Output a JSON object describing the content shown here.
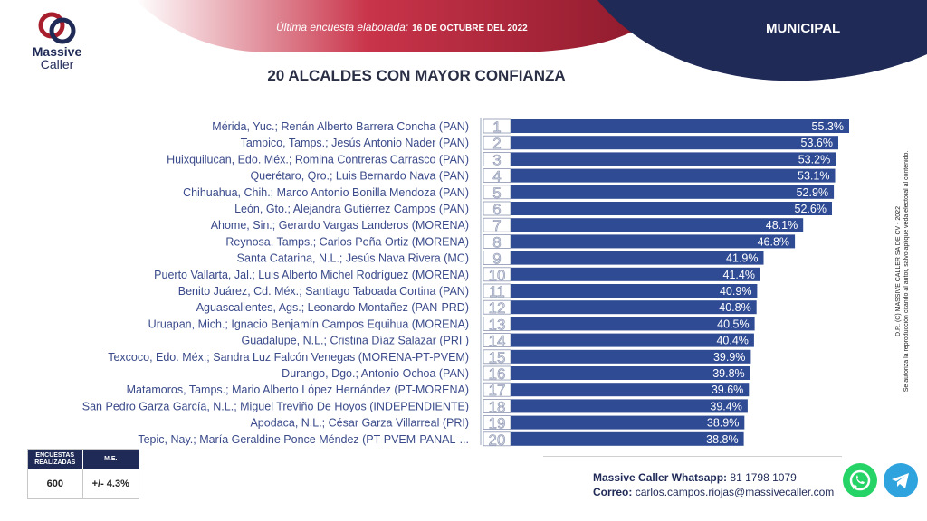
{
  "brand": {
    "line1": "Massive",
    "line2": "Caller"
  },
  "header": {
    "survey_label": "Última encuesta elaborada:",
    "survey_date": "16 DE OCTUBRE DEL 2022",
    "scope": "MUNICIPAL"
  },
  "colors": {
    "navy": "#1f2a57",
    "red": "#a81e2d",
    "bar": "#2f4b94"
  },
  "chart_data": {
    "type": "bar",
    "orientation": "horizontal",
    "title": "20 ALCALDES CON MAYOR CONFIANZA",
    "categories": [
      "Mérida, Yuc.; Renán Alberto Barrera Concha (PAN)",
      "Tampico, Tamps.; Jesús Antonio Nader  (PAN)",
      "Huixquilucan, Edo. Méx.; Romina Contreras Carrasco  (PAN)",
      "Querétaro, Qro.; Luis Bernardo Nava (PAN)",
      "Chihuahua, Chih.; Marco Antonio Bonilla Mendoza (PAN)",
      "León, Gto.; Alejandra Gutiérrez Campos (PAN)",
      "Ahome, Sin.; Gerardo Vargas Landeros (MORENA)",
      "Reynosa, Tamps.; Carlos Peña Ortiz (MORENA)",
      "Santa Catarina, N.L.; Jesús Nava Rivera (MC)",
      "Puerto Vallarta, Jal.; Luis Alberto Michel Rodríguez (MORENA)",
      "Benito Juárez, Cd. Méx.; Santiago Taboada Cortina (PAN)",
      "Aguascalientes, Ags.; Leonardo Montañez (PAN-PRD)",
      "Uruapan, Mich.; Ignacio Benjamín Campos Equihua (MORENA)",
      "Guadalupe, N.L.; Cristina Díaz Salazar (PRI )",
      "Texcoco, Edo. Méx.; Sandra Luz Falcón Venegas (MORENA-PT-PVEM)",
      "Durango, Dgo.; Antonio Ochoa (PAN)",
      "Matamoros, Tamps.; Mario Alberto López Hernández (PT-MORENA)",
      "San Pedro Garza García, N.L.; Miguel Treviño De Hoyos (INDEPENDIENTE)",
      "Apodaca, N.L.; César Garza Villarreal (PRI)",
      "Tepic, Nay.; María Geraldine Ponce Méndez (PT-PVEM-PANAL-..."
    ],
    "ranks": [
      "1",
      "2",
      "3",
      "4",
      "5",
      "6",
      "7",
      "8",
      "9",
      "10",
      "11",
      "12",
      "13",
      "14",
      "15",
      "16",
      "17",
      "18",
      "19",
      "20"
    ],
    "values": [
      55.3,
      53.6,
      53.2,
      53.1,
      52.9,
      52.6,
      48.1,
      46.8,
      41.9,
      41.4,
      40.9,
      40.8,
      40.5,
      40.4,
      39.9,
      39.8,
      39.6,
      39.4,
      38.9,
      38.8
    ],
    "value_labels": [
      "55.3%",
      "53.6%",
      "53.2%",
      "53.1%",
      "52.9%",
      "52.6%",
      "48.1%",
      "46.8%",
      "41.9%",
      "41.4%",
      "40.9%",
      "40.8%",
      "40.5%",
      "40.4%",
      "39.9%",
      "39.8%",
      "39.6%",
      "39.4%",
      "38.9%",
      "38.8%"
    ],
    "xlim": [
      0,
      60
    ],
    "legend": "none",
    "grid": false
  },
  "copyright": {
    "line1": "D.R. (C) MASSIVE CALLER SA DE CV - 2022",
    "line2": "Se autoriza la reproducción citando al autor, salvo aplique veda electoral al contenido."
  },
  "stats": {
    "header_sample": "ENCUESTAS REALIZADAS",
    "header_me": "M.E.",
    "sample": "600",
    "me": "+/- 4.3%"
  },
  "contact": {
    "whatsapp_label": "Massive Caller Whatsapp:",
    "whatsapp_number": "81 1798 1079",
    "email_label": "Correo:",
    "email": "carlos.campos.riojas@massivecaller.com"
  },
  "icons": {
    "whatsapp": "whatsapp-icon",
    "telegram": "telegram-icon"
  }
}
